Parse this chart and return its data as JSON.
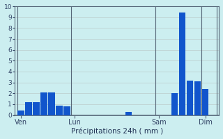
{
  "bar_values": [
    0.4,
    1.2,
    1.2,
    2.1,
    2.1,
    0.9,
    0.8,
    0,
    0,
    0,
    0,
    0,
    0,
    0,
    0.3,
    0,
    0,
    0,
    0,
    0,
    2.0,
    9.4,
    3.2,
    3.1,
    2.4,
    0
  ],
  "n_bars": 26,
  "ylim": [
    0,
    10
  ],
  "yticks": [
    0,
    1,
    2,
    3,
    4,
    5,
    6,
    7,
    8,
    9,
    10
  ],
  "xlabel": "Précipitations 24h ( mm )",
  "background_color": "#cceef0",
  "bar_color": "#1155cc",
  "grid_color": "#bbcccc",
  "axis_color": "#556677",
  "tick_label_color": "#334466",
  "xlabel_color": "#223355",
  "xtick_labels": [
    "Ven",
    "Lun",
    "Sam",
    "Dim"
  ],
  "xtick_positions": [
    0,
    7,
    18,
    24
  ],
  "day_lines": [
    0,
    7,
    18,
    24
  ]
}
